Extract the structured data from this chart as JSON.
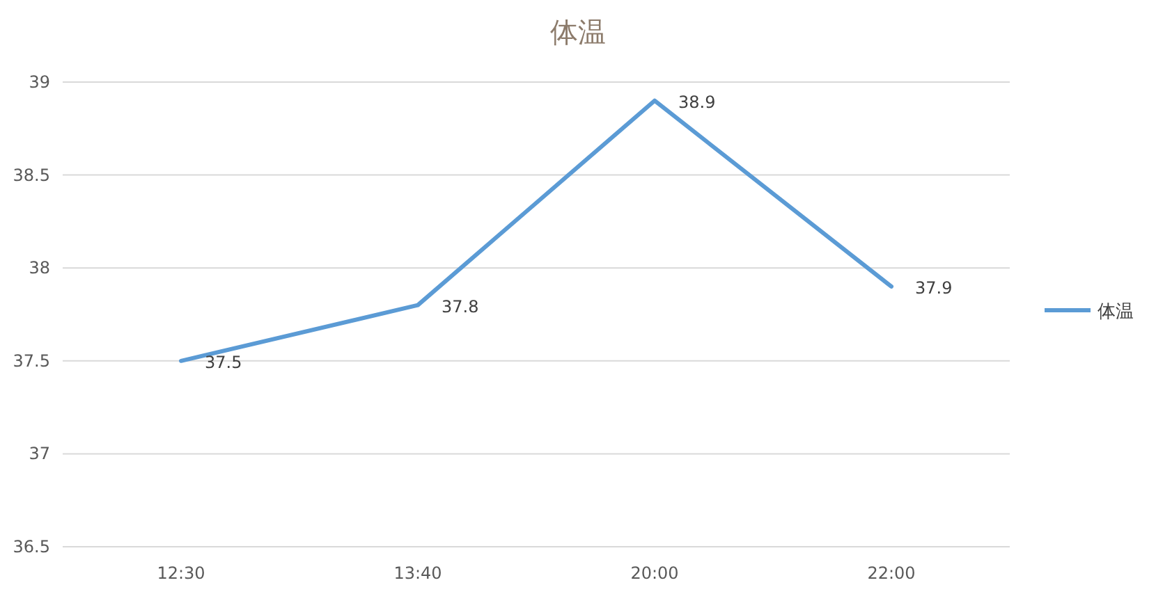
{
  "chart_data": {
    "type": "line",
    "title": "体温",
    "categories": [
      "12:30",
      "13:40",
      "20:00",
      "22:00"
    ],
    "series": [
      {
        "name": "体温",
        "color": "#5b9bd5",
        "values": [
          37.5,
          37.8,
          38.9,
          37.9
        ]
      }
    ],
    "ylim": [
      36.5,
      39
    ],
    "yticks": [
      36.5,
      37,
      37.5,
      38,
      38.5,
      39
    ],
    "grid": "y",
    "legend": "right",
    "data_labels": true
  }
}
